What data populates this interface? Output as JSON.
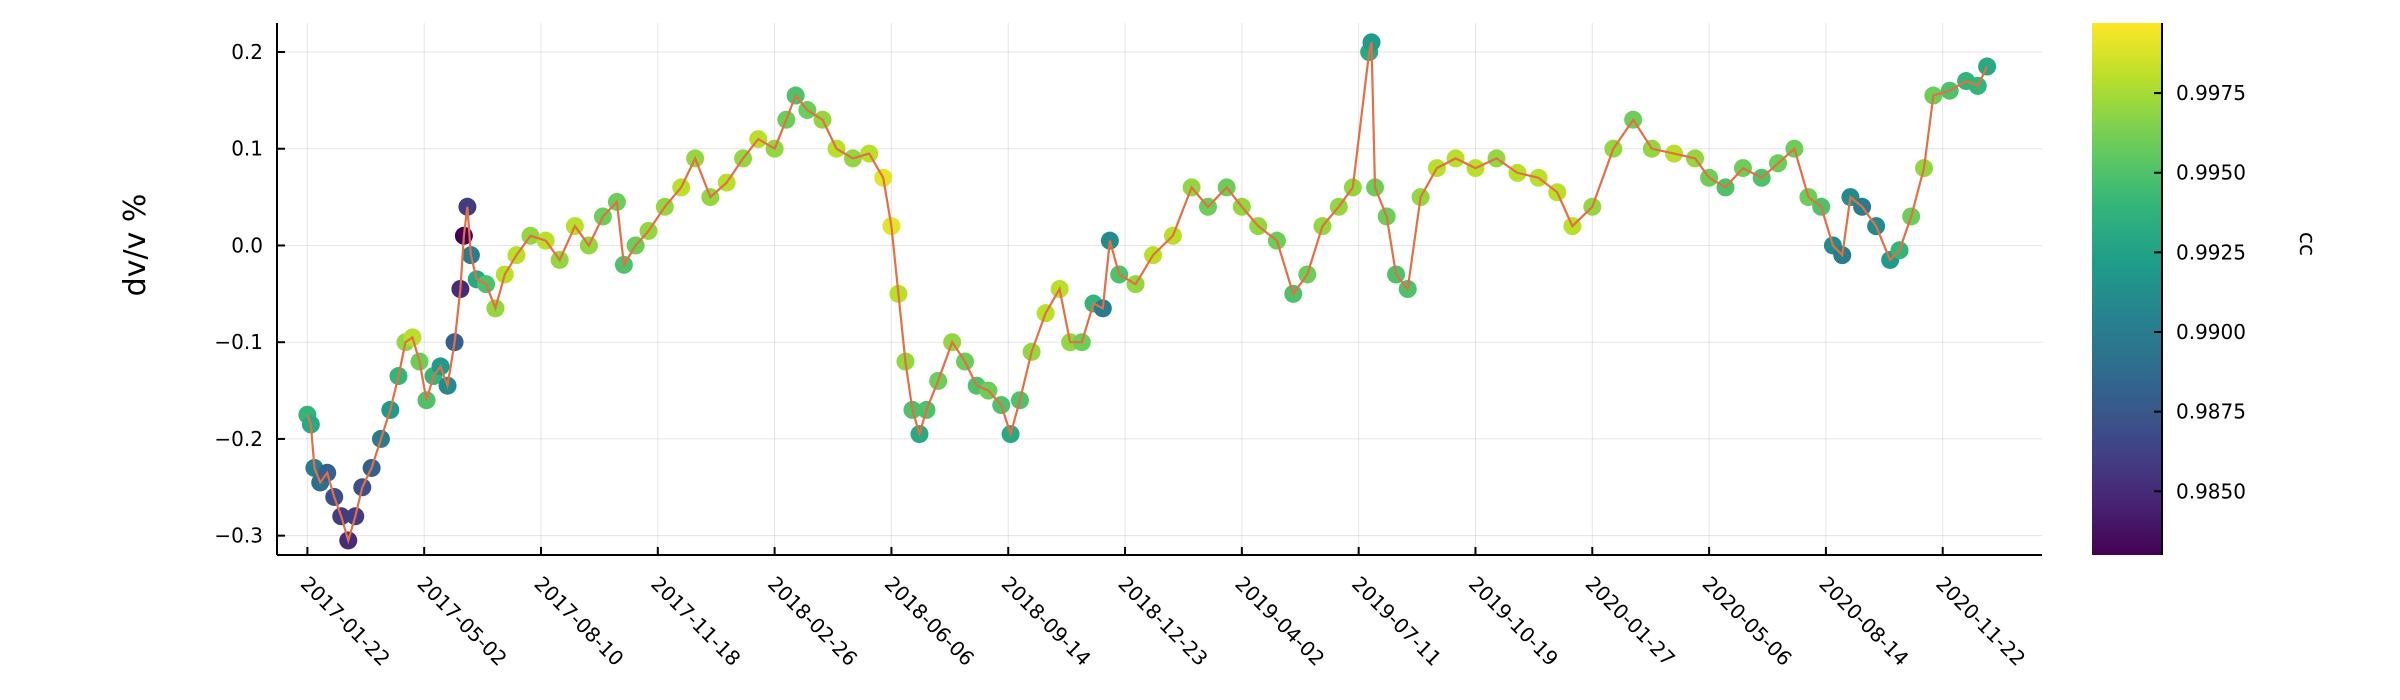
{
  "chart_data": {
    "type": "scatter",
    "title": "",
    "xlabel": "",
    "ylabel": "dv/v %",
    "ylim": [
      -0.32,
      0.23
    ],
    "xlim": [
      "2016-12-27",
      "2021-02-15"
    ],
    "grid": true,
    "legend": "none",
    "x_ticks": [
      "2017-01-22",
      "2017-05-02",
      "2017-08-10",
      "2017-11-18",
      "2018-02-26",
      "2018-06-06",
      "2018-09-14",
      "2018-12-23",
      "2019-04-02",
      "2019-07-11",
      "2019-10-19",
      "2020-01-27",
      "2020-05-06",
      "2020-08-14",
      "2020-11-22"
    ],
    "y_ticks": [
      -0.3,
      -0.2,
      -0.1,
      0.0,
      0.1,
      0.2
    ],
    "y_tick_labels": [
      "−0.3",
      "−0.2",
      "−0.1",
      "0.0",
      "0.1",
      "0.2"
    ],
    "colorbar": {
      "label": "cc",
      "range": [
        0.983,
        0.9997
      ],
      "ticks": [
        0.985,
        0.9875,
        0.99,
        0.9925,
        0.995,
        0.9975
      ],
      "tick_labels": [
        "0.9850",
        "0.9875",
        "0.9900",
        "0.9925",
        "0.9950",
        "0.9975"
      ],
      "colormap": "viridis"
    },
    "line_color": "#e26f46",
    "series": [
      {
        "points": [
          {
            "x": "2017-01-22",
            "y": -0.175,
            "cc": 0.994
          },
          {
            "x": "2017-01-25",
            "y": -0.185,
            "cc": 0.993
          },
          {
            "x": "2017-01-28",
            "y": -0.23,
            "cc": 0.99
          },
          {
            "x": "2017-02-02",
            "y": -0.245,
            "cc": 0.989
          },
          {
            "x": "2017-02-08",
            "y": -0.235,
            "cc": 0.988
          },
          {
            "x": "2017-02-14",
            "y": -0.26,
            "cc": 0.987
          },
          {
            "x": "2017-02-20",
            "y": -0.28,
            "cc": 0.986
          },
          {
            "x": "2017-02-26",
            "y": -0.305,
            "cc": 0.985
          },
          {
            "x": "2017-03-04",
            "y": -0.28,
            "cc": 0.986
          },
          {
            "x": "2017-03-10",
            "y": -0.25,
            "cc": 0.987
          },
          {
            "x": "2017-03-18",
            "y": -0.23,
            "cc": 0.988
          },
          {
            "x": "2017-03-26",
            "y": -0.2,
            "cc": 0.99
          },
          {
            "x": "2017-04-03",
            "y": -0.17,
            "cc": 0.992
          },
          {
            "x": "2017-04-10",
            "y": -0.135,
            "cc": 0.994
          },
          {
            "x": "2017-04-16",
            "y": -0.1,
            "cc": 0.997
          },
          {
            "x": "2017-04-22",
            "y": -0.095,
            "cc": 0.998
          },
          {
            "x": "2017-04-28",
            "y": -0.12,
            "cc": 0.996
          },
          {
            "x": "2017-05-04",
            "y": -0.16,
            "cc": 0.995
          },
          {
            "x": "2017-05-10",
            "y": -0.135,
            "cc": 0.994
          },
          {
            "x": "2017-05-16",
            "y": -0.125,
            "cc": 0.992
          },
          {
            "x": "2017-05-22",
            "y": -0.145,
            "cc": 0.991
          },
          {
            "x": "2017-05-28",
            "y": -0.1,
            "cc": 0.988
          },
          {
            "x": "2017-06-02",
            "y": -0.045,
            "cc": 0.985
          },
          {
            "x": "2017-06-05",
            "y": 0.01,
            "cc": 0.983
          },
          {
            "x": "2017-06-08",
            "y": 0.04,
            "cc": 0.986
          },
          {
            "x": "2017-06-11",
            "y": -0.01,
            "cc": 0.99
          },
          {
            "x": "2017-06-16",
            "y": -0.035,
            "cc": 0.993
          },
          {
            "x": "2017-06-24",
            "y": -0.04,
            "cc": 0.995
          },
          {
            "x": "2017-07-02",
            "y": -0.065,
            "cc": 0.997
          },
          {
            "x": "2017-07-10",
            "y": -0.03,
            "cc": 0.998
          },
          {
            "x": "2017-07-20",
            "y": -0.01,
            "cc": 0.998
          },
          {
            "x": "2017-08-01",
            "y": 0.01,
            "cc": 0.997
          },
          {
            "x": "2017-08-14",
            "y": 0.005,
            "cc": 0.998
          },
          {
            "x": "2017-08-26",
            "y": -0.015,
            "cc": 0.997
          },
          {
            "x": "2017-09-08",
            "y": 0.02,
            "cc": 0.998
          },
          {
            "x": "2017-09-20",
            "y": 0.0,
            "cc": 0.997
          },
          {
            "x": "2017-10-02",
            "y": 0.03,
            "cc": 0.996
          },
          {
            "x": "2017-10-14",
            "y": 0.045,
            "cc": 0.996
          },
          {
            "x": "2017-10-20",
            "y": -0.02,
            "cc": 0.995
          },
          {
            "x": "2017-10-30",
            "y": 0.0,
            "cc": 0.996
          },
          {
            "x": "2017-11-10",
            "y": 0.015,
            "cc": 0.997
          },
          {
            "x": "2017-11-24",
            "y": 0.04,
            "cc": 0.997
          },
          {
            "x": "2017-12-08",
            "y": 0.06,
            "cc": 0.998
          },
          {
            "x": "2017-12-20",
            "y": 0.09,
            "cc": 0.997
          },
          {
            "x": "2018-01-02",
            "y": 0.05,
            "cc": 0.997
          },
          {
            "x": "2018-01-16",
            "y": 0.065,
            "cc": 0.998
          },
          {
            "x": "2018-01-30",
            "y": 0.09,
            "cc": 0.997
          },
          {
            "x": "2018-02-12",
            "y": 0.11,
            "cc": 0.998
          },
          {
            "x": "2018-02-26",
            "y": 0.1,
            "cc": 0.997
          },
          {
            "x": "2018-03-08",
            "y": 0.13,
            "cc": 0.996
          },
          {
            "x": "2018-03-16",
            "y": 0.155,
            "cc": 0.995
          },
          {
            "x": "2018-03-26",
            "y": 0.14,
            "cc": 0.996
          },
          {
            "x": "2018-04-08",
            "y": 0.13,
            "cc": 0.997
          },
          {
            "x": "2018-04-20",
            "y": 0.1,
            "cc": 0.998
          },
          {
            "x": "2018-05-04",
            "y": 0.09,
            "cc": 0.997
          },
          {
            "x": "2018-05-18",
            "y": 0.095,
            "cc": 0.998
          },
          {
            "x": "2018-05-30",
            "y": 0.07,
            "cc": 0.999
          },
          {
            "x": "2018-06-06",
            "y": 0.02,
            "cc": 0.999
          },
          {
            "x": "2018-06-12",
            "y": -0.05,
            "cc": 0.998
          },
          {
            "x": "2018-06-18",
            "y": -0.12,
            "cc": 0.997
          },
          {
            "x": "2018-06-24",
            "y": -0.17,
            "cc": 0.995
          },
          {
            "x": "2018-06-30",
            "y": -0.195,
            "cc": 0.993
          },
          {
            "x": "2018-07-06",
            "y": -0.17,
            "cc": 0.995
          },
          {
            "x": "2018-07-16",
            "y": -0.14,
            "cc": 0.996
          },
          {
            "x": "2018-07-28",
            "y": -0.1,
            "cc": 0.997
          },
          {
            "x": "2018-08-08",
            "y": -0.12,
            "cc": 0.996
          },
          {
            "x": "2018-08-18",
            "y": -0.145,
            "cc": 0.995
          },
          {
            "x": "2018-08-28",
            "y": -0.15,
            "cc": 0.996
          },
          {
            "x": "2018-09-08",
            "y": -0.165,
            "cc": 0.995
          },
          {
            "x": "2018-09-16",
            "y": -0.195,
            "cc": 0.993
          },
          {
            "x": "2018-09-24",
            "y": -0.16,
            "cc": 0.995
          },
          {
            "x": "2018-10-04",
            "y": -0.11,
            "cc": 0.997
          },
          {
            "x": "2018-10-16",
            "y": -0.07,
            "cc": 0.998
          },
          {
            "x": "2018-10-28",
            "y": -0.045,
            "cc": 0.998
          },
          {
            "x": "2018-11-06",
            "y": -0.1,
            "cc": 0.997
          },
          {
            "x": "2018-11-16",
            "y": -0.1,
            "cc": 0.996
          },
          {
            "x": "2018-11-26",
            "y": -0.06,
            "cc": 0.994
          },
          {
            "x": "2018-12-04",
            "y": -0.065,
            "cc": 0.99
          },
          {
            "x": "2018-12-10",
            "y": 0.005,
            "cc": 0.991
          },
          {
            "x": "2018-12-18",
            "y": -0.03,
            "cc": 0.995
          },
          {
            "x": "2019-01-01",
            "y": -0.04,
            "cc": 0.997
          },
          {
            "x": "2019-01-16",
            "y": -0.01,
            "cc": 0.998
          },
          {
            "x": "2019-02-02",
            "y": 0.01,
            "cc": 0.998
          },
          {
            "x": "2019-02-18",
            "y": 0.06,
            "cc": 0.997
          },
          {
            "x": "2019-03-04",
            "y": 0.04,
            "cc": 0.996
          },
          {
            "x": "2019-03-20",
            "y": 0.06,
            "cc": 0.996
          },
          {
            "x": "2019-04-02",
            "y": 0.04,
            "cc": 0.997
          },
          {
            "x": "2019-04-16",
            "y": 0.02,
            "cc": 0.997
          },
          {
            "x": "2019-05-02",
            "y": 0.005,
            "cc": 0.996
          },
          {
            "x": "2019-05-16",
            "y": -0.05,
            "cc": 0.995
          },
          {
            "x": "2019-05-28",
            "y": -0.03,
            "cc": 0.996
          },
          {
            "x": "2019-06-10",
            "y": 0.02,
            "cc": 0.997
          },
          {
            "x": "2019-06-24",
            "y": 0.04,
            "cc": 0.997
          },
          {
            "x": "2019-07-06",
            "y": 0.06,
            "cc": 0.997
          },
          {
            "x": "2019-07-20",
            "y": 0.2,
            "cc": 0.993
          },
          {
            "x": "2019-07-22",
            "y": 0.21,
            "cc": 0.992
          },
          {
            "x": "2019-07-25",
            "y": 0.06,
            "cc": 0.996
          },
          {
            "x": "2019-08-04",
            "y": 0.03,
            "cc": 0.996
          },
          {
            "x": "2019-08-12",
            "y": -0.03,
            "cc": 0.995
          },
          {
            "x": "2019-08-22",
            "y": -0.045,
            "cc": 0.995
          },
          {
            "x": "2019-09-02",
            "y": 0.05,
            "cc": 0.997
          },
          {
            "x": "2019-09-16",
            "y": 0.08,
            "cc": 0.998
          },
          {
            "x": "2019-10-02",
            "y": 0.09,
            "cc": 0.998
          },
          {
            "x": "2019-10-19",
            "y": 0.08,
            "cc": 0.998
          },
          {
            "x": "2019-11-06",
            "y": 0.09,
            "cc": 0.997
          },
          {
            "x": "2019-11-24",
            "y": 0.075,
            "cc": 0.998
          },
          {
            "x": "2019-12-12",
            "y": 0.07,
            "cc": 0.998
          },
          {
            "x": "2019-12-28",
            "y": 0.055,
            "cc": 0.998
          },
          {
            "x": "2020-01-10",
            "y": 0.02,
            "cc": 0.998
          },
          {
            "x": "2020-01-27",
            "y": 0.04,
            "cc": 0.997
          },
          {
            "x": "2020-02-14",
            "y": 0.1,
            "cc": 0.997
          },
          {
            "x": "2020-03-02",
            "y": 0.13,
            "cc": 0.996
          },
          {
            "x": "2020-03-18",
            "y": 0.1,
            "cc": 0.997
          },
          {
            "x": "2020-04-06",
            "y": 0.095,
            "cc": 0.998
          },
          {
            "x": "2020-04-24",
            "y": 0.09,
            "cc": 0.997
          },
          {
            "x": "2020-05-06",
            "y": 0.07,
            "cc": 0.996
          },
          {
            "x": "2020-05-20",
            "y": 0.06,
            "cc": 0.995
          },
          {
            "x": "2020-06-04",
            "y": 0.08,
            "cc": 0.996
          },
          {
            "x": "2020-06-20",
            "y": 0.07,
            "cc": 0.995
          },
          {
            "x": "2020-07-04",
            "y": 0.085,
            "cc": 0.996
          },
          {
            "x": "2020-07-18",
            "y": 0.1,
            "cc": 0.996
          },
          {
            "x": "2020-07-30",
            "y": 0.05,
            "cc": 0.996
          },
          {
            "x": "2020-08-10",
            "y": 0.04,
            "cc": 0.995
          },
          {
            "x": "2020-08-20",
            "y": 0.0,
            "cc": 0.991
          },
          {
            "x": "2020-08-28",
            "y": -0.01,
            "cc": 0.99
          },
          {
            "x": "2020-09-04",
            "y": 0.05,
            "cc": 0.991
          },
          {
            "x": "2020-09-14",
            "y": 0.04,
            "cc": 0.99
          },
          {
            "x": "2020-09-26",
            "y": 0.02,
            "cc": 0.991
          },
          {
            "x": "2020-10-08",
            "y": -0.015,
            "cc": 0.992
          },
          {
            "x": "2020-10-16",
            "y": -0.005,
            "cc": 0.994
          },
          {
            "x": "2020-10-26",
            "y": 0.03,
            "cc": 0.996
          },
          {
            "x": "2020-11-06",
            "y": 0.08,
            "cc": 0.997
          },
          {
            "x": "2020-11-14",
            "y": 0.155,
            "cc": 0.996
          },
          {
            "x": "2020-11-28",
            "y": 0.16,
            "cc": 0.995
          },
          {
            "x": "2020-12-12",
            "y": 0.17,
            "cc": 0.994
          },
          {
            "x": "2020-12-22",
            "y": 0.165,
            "cc": 0.994
          },
          {
            "x": "2020-12-30",
            "y": 0.185,
            "cc": 0.993
          }
        ]
      }
    ]
  }
}
